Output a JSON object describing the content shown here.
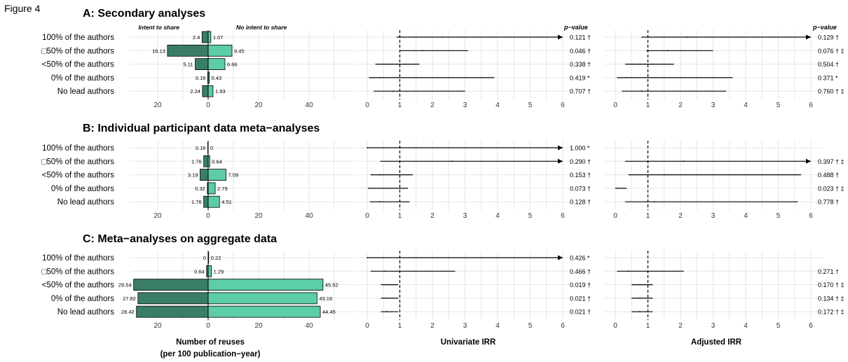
{
  "figure_label": "Figure 4",
  "row_labels": [
    "100% of the authors",
    "□50% of the authors",
    "<50% of the authors",
    "0% of the authors",
    "No lead authors"
  ],
  "bar_legend": {
    "left": "Intent to share",
    "right": "No intent to share"
  },
  "colors": {
    "intent": "#3a7d68",
    "no_intent": "#5ccda4",
    "grid": "#e6e6e6"
  },
  "pvalue_header": "p−value",
  "x_titles": {
    "bars": "Number of reuses",
    "bars_sub": "(per 100 publication−year)",
    "univariate": "Univariate IRR",
    "adjusted": "Adjusted IRR"
  },
  "chart_data": [
    {
      "type": "bar",
      "title": "A: Secondary analyses",
      "categories": [
        "100% of the authors",
        "□50% of the authors",
        "<50% of the authors",
        "0% of the authors",
        "No lead authors"
      ],
      "series": [
        {
          "name": "Intent to share",
          "values": [
            2.4,
            16.13,
            5.11,
            0.16,
            2.24
          ],
          "labels": [
            "2.4",
            "16.13",
            "5.11",
            "0.16",
            "2.24"
          ]
        },
        {
          "name": "No intent to share",
          "values": [
            1.07,
            9.45,
            6.66,
            0.43,
            1.93
          ],
          "labels": [
            "1.07",
            "9.45",
            "6.66",
            "0.43",
            "1.93"
          ]
        }
      ],
      "xticks": [
        "20",
        "0",
        "20",
        "40"
      ],
      "forest": {
        "univariate": {
          "xticks": [
            "0",
            "1",
            "2",
            "3",
            "4",
            "5",
            "6"
          ],
          "rows": [
            {
              "est": 2.3,
              "lo": 0.9,
              "hi": 6,
              "arrow": true,
              "p": "0.121 †"
            },
            {
              "est": 1.7,
              "lo": 1.0,
              "hi": 3.1,
              "p": "0.046 †"
            },
            {
              "est": 0.65,
              "lo": 0.25,
              "hi": 1.6,
              "p": "0.338 †"
            },
            {
              "est": 0.4,
              "lo": 0.05,
              "hi": 3.9,
              "p": "0.419 *"
            },
            {
              "est": 0.8,
              "lo": 0.2,
              "hi": 3.0,
              "p": "0.707 †"
            }
          ]
        },
        "adjusted": {
          "xticks": [
            "0",
            "1",
            "2",
            "3",
            "4",
            "5",
            "6"
          ],
          "rows": [
            {
              "est": 2.2,
              "lo": 0.8,
              "hi": 6,
              "arrow": true,
              "p": "0.129 †"
            },
            {
              "est": 1.6,
              "lo": 0.95,
              "hi": 3.0,
              "p": "0.076 † ‡"
            },
            {
              "est": 0.75,
              "lo": 0.3,
              "hi": 1.8,
              "p": "0.504 †"
            },
            {
              "est": 0.35,
              "lo": 0.05,
              "hi": 3.6,
              "p": "0.371 *"
            },
            {
              "est": 0.8,
              "lo": 0.2,
              "hi": 3.4,
              "p": "0.760 † ‡"
            }
          ]
        }
      }
    },
    {
      "type": "bar",
      "title": "B: Individual participant data meta−analyses",
      "categories": [
        "100% of the authors",
        "□50% of the authors",
        "<50% of the authors",
        "0% of the authors",
        "No lead authors"
      ],
      "series": [
        {
          "name": "Intent to share",
          "values": [
            0.16,
            1.76,
            3.19,
            0.32,
            1.76
          ],
          "labels": [
            "0.16",
            "1.76",
            "3.19",
            "0.32",
            "1.76"
          ]
        },
        {
          "name": "No intent to share",
          "values": [
            0,
            0.64,
            7.09,
            2.79,
            4.51
          ],
          "labels": [
            "0",
            "0.64",
            "7.09",
            "2.79",
            "4.51"
          ]
        }
      ],
      "xticks": [
        "20",
        "0",
        "20",
        "40"
      ],
      "forest": {
        "univariate": {
          "xticks": [
            "0",
            "1",
            "2",
            "3",
            "4",
            "5",
            "6"
          ],
          "rows": [
            {
              "est": 0,
              "lo": 0,
              "hi": 6,
              "arrow": true,
              "p": "1.000 *"
            },
            {
              "est": 2.6,
              "lo": 0.4,
              "hi": 6,
              "arrow": true,
              "p": "0.290 †"
            },
            {
              "est": 0.4,
              "lo": 0.1,
              "hi": 1.4,
              "p": "0.153 †"
            },
            {
              "est": 0.1,
              "lo": 0.02,
              "hi": 1.25,
              "p": "0.073 †"
            },
            {
              "est": 0.4,
              "lo": 0.08,
              "hi": 1.3,
              "p": "0.128 †"
            }
          ]
        },
        "adjusted": {
          "xticks": [
            "0",
            "1",
            "2",
            "3",
            "4",
            "5",
            "6"
          ],
          "rows": [
            {
              "est": null,
              "lo": null,
              "hi": null,
              "p": ""
            },
            {
              "est": 2.1,
              "lo": 0.3,
              "hi": 6,
              "arrow": true,
              "p": "0.397 † ‡"
            },
            {
              "est": 1.5,
              "lo": 0.4,
              "hi": 5.7,
              "p": "0.488 †"
            },
            {
              "est": 0.02,
              "lo": 0.0,
              "hi": 0.35,
              "p": "0.023 † ‡"
            },
            {
              "est": 1.2,
              "lo": 0.3,
              "hi": 5.6,
              "p": "0.778 †"
            }
          ]
        }
      }
    },
    {
      "type": "bar",
      "title": "C: Meta−analyses on aggregate data",
      "categories": [
        "100% of the authors",
        "□50% of the authors",
        "<50% of the authors",
        "0% of the authors",
        "No lead authors"
      ],
      "series": [
        {
          "name": "Intent to share",
          "values": [
            0,
            0.64,
            29.54,
            27.82,
            28.42
          ],
          "labels": [
            "0",
            "0.64",
            "29.54",
            "27.82",
            "28.42"
          ]
        },
        {
          "name": "No intent to share",
          "values": [
            0.22,
            1.29,
            45.52,
            43.16,
            44.45
          ],
          "labels": [
            "0.22",
            "1.29",
            "45.52",
            "43.16",
            "44.45"
          ]
        }
      ],
      "xticks": [
        "20",
        "0",
        "20",
        "40"
      ],
      "forest": {
        "univariate": {
          "xticks": [
            "0",
            "1",
            "2",
            "3",
            "4",
            "5",
            "6"
          ],
          "rows": [
            {
              "est": 0,
              "lo": 0,
              "hi": 6,
              "arrow": true,
              "p": "0.426 *"
            },
            {
              "est": 0.55,
              "lo": 0.1,
              "hi": 2.7,
              "p": "0.466 †"
            },
            {
              "est": 0.6,
              "lo": 0.42,
              "hi": 0.95,
              "p": "0.019 †"
            },
            {
              "est": 0.6,
              "lo": 0.42,
              "hi": 0.95,
              "p": "0.021 †"
            },
            {
              "est": 0.6,
              "lo": 0.42,
              "hi": 0.95,
              "p": "0.021 †"
            }
          ]
        },
        "adjusted": {
          "xticks": [
            "0",
            "1",
            "2",
            "3",
            "4",
            "5",
            "6"
          ],
          "rows": [
            {
              "est": null,
              "lo": null,
              "hi": null,
              "p": ""
            },
            {
              "est": 0.4,
              "lo": 0.05,
              "hi": 2.1,
              "p": "0.271 †"
            },
            {
              "est": 0.75,
              "lo": 0.5,
              "hi": 1.15,
              "p": "0.170 † ‡"
            },
            {
              "est": 0.75,
              "lo": 0.5,
              "hi": 1.15,
              "p": "0.134 † ‡"
            },
            {
              "est": 0.75,
              "lo": 0.5,
              "hi": 1.15,
              "p": "0.172 † ‡"
            }
          ]
        }
      }
    }
  ]
}
